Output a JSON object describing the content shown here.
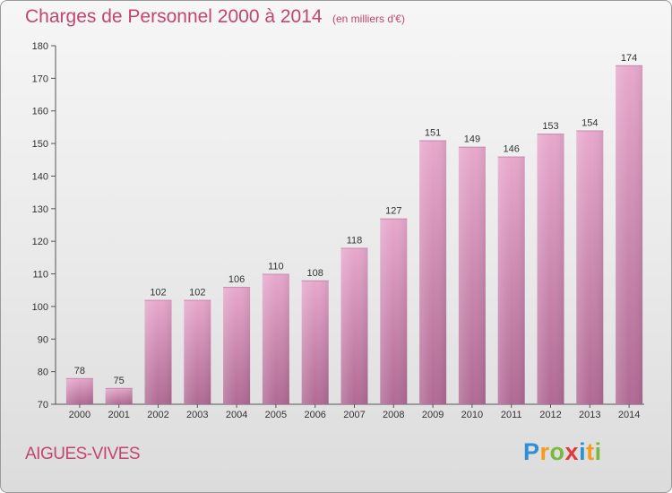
{
  "title": "Charges de Personnel 2000 à 2014",
  "subtitle": "(en milliers d'€)",
  "place": "AIGUES-VIVES",
  "logo": {
    "letters": [
      "P",
      "r",
      "o",
      "x",
      "i",
      "t",
      "i"
    ],
    "colors": [
      "#2e8fd6",
      "#f39c1f",
      "#7bb83b",
      "#e03a3a",
      "#2e8fd6",
      "#f39c1f",
      "#7bb83b"
    ]
  },
  "colors": {
    "bar_top": "#e7a8cc",
    "bar_bottom": "#b06a94",
    "accent": "#c2466f"
  },
  "chart_data": {
    "type": "bar",
    "categories": [
      "2000",
      "2001",
      "2002",
      "2003",
      "2004",
      "2005",
      "2006",
      "2007",
      "2008",
      "2009",
      "2010",
      "2011",
      "2012",
      "2013",
      "2014"
    ],
    "values": [
      78,
      75,
      102,
      102,
      106,
      110,
      108,
      118,
      127,
      151,
      149,
      146,
      153,
      154,
      174
    ],
    "ylim": [
      70,
      180
    ],
    "yticks": [
      70,
      80,
      90,
      100,
      110,
      120,
      130,
      140,
      150,
      160,
      170,
      180
    ],
    "grid": false,
    "data_labels": true
  }
}
